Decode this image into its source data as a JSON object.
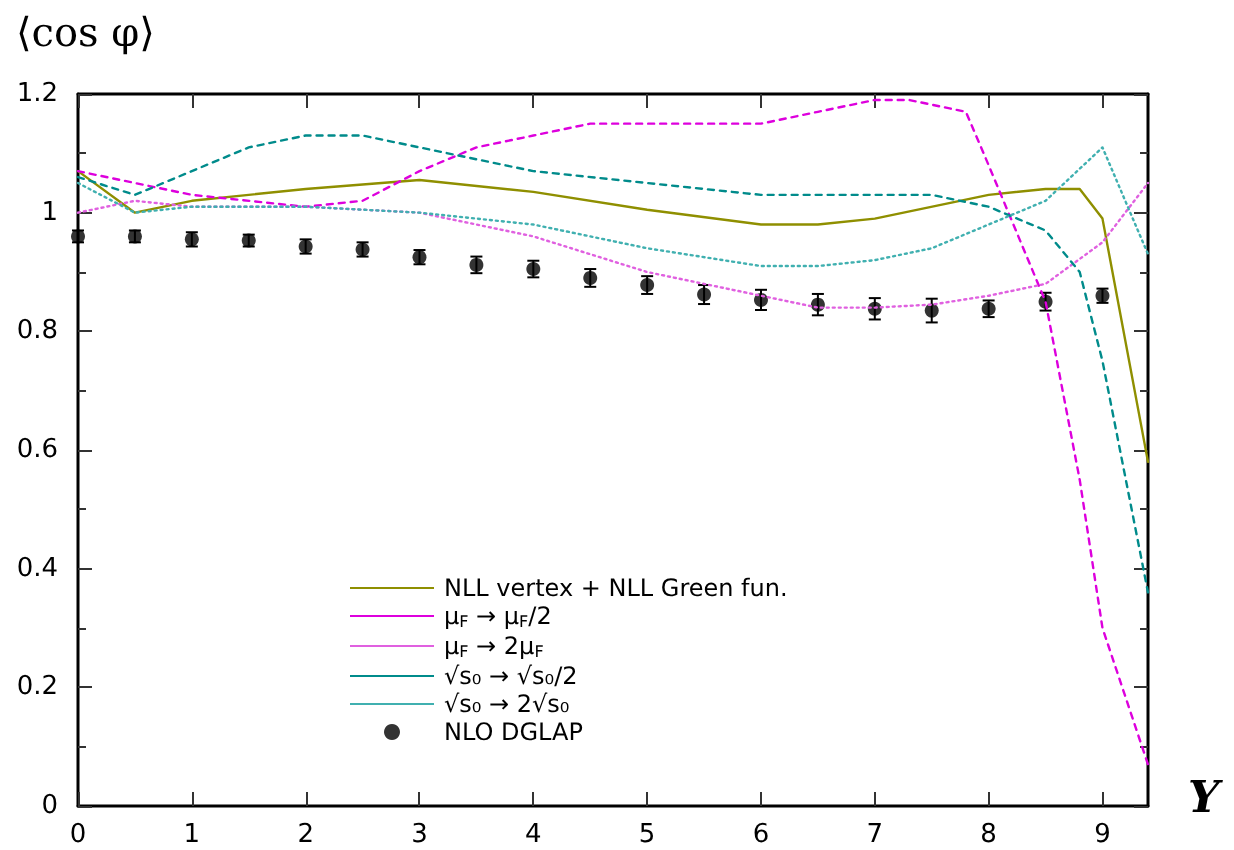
{
  "chart_data": {
    "type": "line",
    "ylabel": "⟨cos φ⟩",
    "xlabel": "Y",
    "xlim": [
      0,
      9.4
    ],
    "xticks": [
      0,
      1,
      2,
      3,
      4,
      5,
      6,
      7,
      8,
      9
    ],
    "ylim": [
      0,
      1.2
    ],
    "yticks": [
      0,
      0.2,
      0.4,
      0.6,
      0.8,
      1,
      1.2
    ],
    "grid": false,
    "legend": "bottom",
    "marker": "none",
    "series": [
      {
        "name": "NLL vertex + NLL Green fun.",
        "color": "#8f8f00",
        "line_style": "solid",
        "x": [
          0,
          0.5,
          1,
          1.5,
          2,
          3,
          4,
          5,
          6,
          6.5,
          7,
          8,
          8.5,
          8.8,
          9,
          9.4
        ],
        "values": [
          1.07,
          1.0,
          1.02,
          1.03,
          1.04,
          1.055,
          1.035,
          1.005,
          0.98,
          0.98,
          0.99,
          1.03,
          1.04,
          1.04,
          0.99,
          0.58
        ]
      },
      {
        "name": "μ$_{F}$ → μ$_{F}$/2",
        "color": "#dd00dd",
        "line_style": "dashed",
        "x": [
          0,
          0.5,
          1,
          2,
          2.5,
          3,
          3.5,
          4,
          4.5,
          5,
          6,
          6.5,
          7,
          7.3,
          7.8,
          8,
          8.5,
          8.8,
          9,
          9.4
        ],
        "values": [
          1.07,
          1.05,
          1.03,
          1.01,
          1.02,
          1.07,
          1.11,
          1.13,
          1.15,
          1.15,
          1.15,
          1.17,
          1.19,
          1.19,
          1.17,
          1.08,
          0.85,
          0.55,
          0.3,
          0.07
        ]
      },
      {
        "name": "μ$_{F}$ → 2μ$_{F}$",
        "color": "#e060e0",
        "line_style": "dotted",
        "x": [
          0,
          0.5,
          1,
          2,
          3,
          4,
          4.5,
          5,
          6,
          6.5,
          7,
          7.5,
          8,
          8.5,
          9,
          9.4
        ],
        "values": [
          1.0,
          1.02,
          1.01,
          1.01,
          1.0,
          0.96,
          0.93,
          0.9,
          0.86,
          0.84,
          0.84,
          0.845,
          0.86,
          0.88,
          0.95,
          1.05
        ]
      },
      {
        "name": "√s₀ → √s₀/2",
        "color": "#008b8b",
        "line_style": "dashed",
        "x": [
          0,
          0.5,
          1,
          1.5,
          2,
          2.5,
          3,
          4,
          5,
          6,
          6.5,
          7,
          7.5,
          8,
          8.5,
          8.8,
          9,
          9.4
        ],
        "values": [
          1.06,
          1.03,
          1.07,
          1.11,
          1.13,
          1.13,
          1.11,
          1.07,
          1.05,
          1.03,
          1.03,
          1.03,
          1.03,
          1.01,
          0.97,
          0.9,
          0.75,
          0.36
        ]
      },
      {
        "name": "√s₀ → 2√s₀",
        "color": "#40b0b0",
        "line_style": "dotted",
        "x": [
          0,
          0.5,
          1,
          2,
          3,
          4,
          5,
          6,
          6.5,
          7,
          7.5,
          8,
          8.5,
          9,
          9.4
        ],
        "values": [
          1.05,
          1.0,
          1.01,
          1.01,
          1.0,
          0.98,
          0.94,
          0.91,
          0.91,
          0.92,
          0.94,
          0.98,
          1.02,
          1.11,
          0.93
        ]
      },
      {
        "name": "NLO DGLAP",
        "type": "scatter",
        "marker": "circle",
        "color": "#000000",
        "x": [
          0,
          0.5,
          1,
          1.5,
          2,
          2.5,
          3,
          3.5,
          4,
          4.5,
          5,
          5.5,
          6,
          6.5,
          7,
          7.5,
          8,
          8.5,
          9
        ],
        "values": [
          0.96,
          0.96,
          0.955,
          0.953,
          0.943,
          0.938,
          0.925,
          0.912,
          0.905,
          0.89,
          0.878,
          0.862,
          0.853,
          0.845,
          0.838,
          0.835,
          0.838,
          0.85,
          0.86
        ],
        "errors": [
          0.01,
          0.01,
          0.012,
          0.01,
          0.012,
          0.012,
          0.012,
          0.014,
          0.014,
          0.015,
          0.015,
          0.016,
          0.017,
          0.018,
          0.018,
          0.02,
          0.014,
          0.015,
          0.012
        ]
      }
    ]
  }
}
